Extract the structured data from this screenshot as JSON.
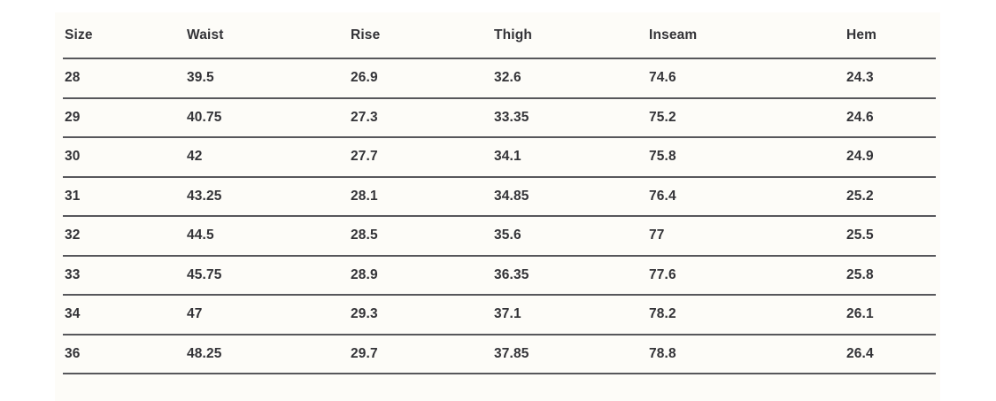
{
  "table": {
    "columns": [
      "Size",
      "Waist",
      "Rise",
      "Thigh",
      "Inseam",
      "Hem"
    ],
    "rows": [
      [
        "28",
        "39.5",
        "26.9",
        "32.6",
        "74.6",
        "24.3"
      ],
      [
        "29",
        "40.75",
        "27.3",
        "33.35",
        "75.2",
        "24.6"
      ],
      [
        "30",
        "42",
        "27.7",
        "34.1",
        "75.8",
        "24.9"
      ],
      [
        "31",
        "43.25",
        "28.1",
        "34.85",
        "76.4",
        "25.2"
      ],
      [
        "32",
        "44.5",
        "28.5",
        "35.6",
        "77",
        "25.5"
      ],
      [
        "33",
        "45.75",
        "28.9",
        "36.35",
        "77.6",
        "25.8"
      ],
      [
        "34",
        "47",
        "29.3",
        "37.1",
        "78.2",
        "26.1"
      ],
      [
        "36",
        "48.25",
        "29.7",
        "37.85",
        "78.8",
        "26.4"
      ]
    ]
  },
  "colors": {
    "text": "#333337",
    "rule": "#57575b",
    "card_background": "#fdfcf8",
    "page_background": "#ffffff"
  }
}
